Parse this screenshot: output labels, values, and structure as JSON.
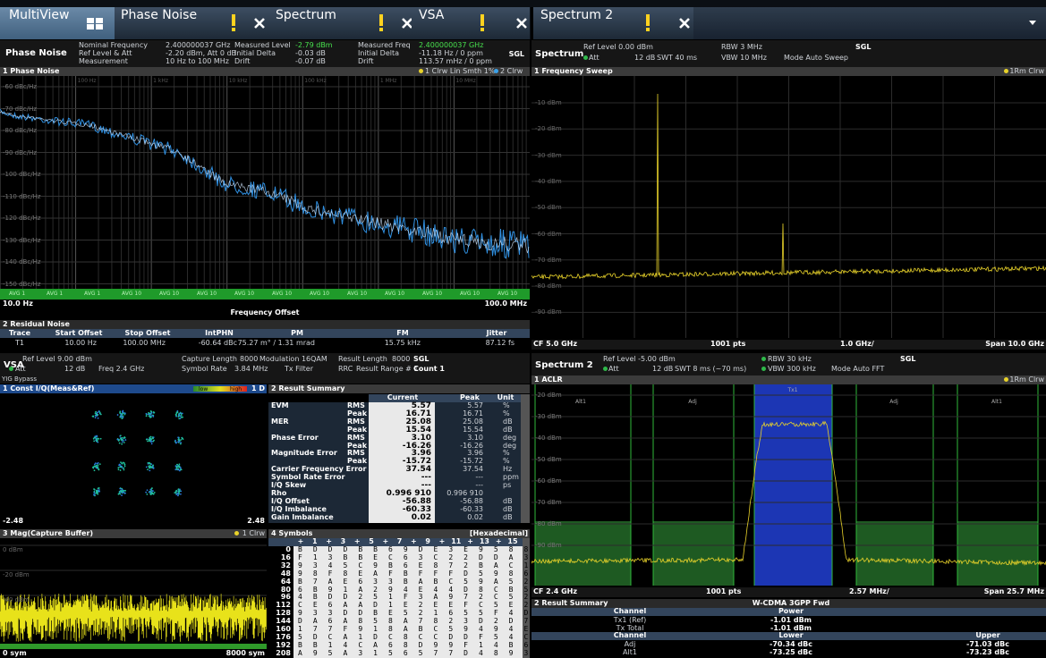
{
  "tabs": [
    {
      "label": "MultiView"
    },
    {
      "label": "Phase Noise"
    },
    {
      "label": "Spectrum"
    },
    {
      "label": "VSA"
    },
    {
      "label": "Spectrum 2"
    }
  ],
  "phase_noise": {
    "name": "Phase Noise",
    "header": [
      [
        "Nominal Frequency",
        "2.400000037 GHz"
      ],
      [
        "Ref Level & Att",
        "-2.20 dBm, Att 0 dB"
      ],
      [
        "Measurement",
        "10 Hz to 100 MHz"
      ],
      [
        "Measured Level",
        "-2.79 dBm"
      ],
      [
        "Initial Delta",
        "-0.03 dB"
      ],
      [
        "Drift",
        "-0.07 dB"
      ],
      [
        "Measured Freq",
        "2.400000037 GHz"
      ],
      [
        "Initial Delta",
        "-11.18 Hz / 0 ppm"
      ],
      [
        "Drift",
        "113.57 mHz / 0 ppm"
      ]
    ],
    "mode": "SGL",
    "plot_title": "1 Phase Noise",
    "legend": [
      "1 Clrw Lin Smth 1%",
      "2 Clrw"
    ],
    "decade_labels": [
      "100 Hz",
      "1 kHz",
      "10 kHz",
      "100 kHz",
      "1 MHz",
      "10 MHz"
    ],
    "y_labels": [
      "-60 dBc/Hz",
      "-70 dBc/Hz",
      "-80 dBc/Hz",
      "-90 dBc/Hz",
      "-100 dBc/Hz",
      "-110 dBc/Hz",
      "-120 dBc/Hz",
      "-130 dBc/Hz",
      "-140 dBc/Hz",
      "-150 dBc/Hz"
    ],
    "avg_labels": [
      "AVG 1",
      "AVG 1",
      "AVG 1",
      "AVG 10",
      "AVG 10",
      "AVG 10",
      "AVG 10",
      "AVG 10",
      "AVG 10",
      "AVG 10",
      "AVG 10",
      "AVG 10",
      "AVG 10",
      "AVG 10"
    ],
    "x_start": "10.0 Hz",
    "x_end": "100.0 MHz",
    "x_label": "Frequency Offset",
    "residual": {
      "title": "2 Residual Noise",
      "columns": [
        "Trace",
        "Start Offset",
        "Stop Offset",
        "IntPHN",
        "PM",
        "FM",
        "Jitter"
      ],
      "rows": [
        [
          "T1",
          "10.00 Hz",
          "100.00 MHz",
          "-60.64 dBc",
          "75.27 m° / 1.31 mrad",
          "15.75 kHz",
          "87.12 fs"
        ]
      ]
    }
  },
  "spectrum": {
    "name": "Spectrum",
    "header": [
      "Ref Level 0.00 dBm",
      "Att",
      "12 dB",
      "SWT 40 ms",
      "RBW 3 MHz",
      "VBW 10 MHz",
      "Mode Auto Sweep",
      "SGL"
    ],
    "plot_title": "1 Frequency Sweep",
    "trace": "1Rm Clrw",
    "y_labels": [
      "-10 dBm",
      "-20 dBm",
      "-30 dBm",
      "-40 dBm",
      "-50 dBm",
      "-60 dBm",
      "-70 dBm",
      "-80 dBm",
      "-90 dBm"
    ],
    "footer": [
      "CF 5.0 GHz",
      "1001 pts",
      "1.0 GHz/",
      "Span 10.0 GHz"
    ]
  },
  "vsa": {
    "name": "VSA",
    "header": [
      "Ref Level 9.00 dBm",
      "Att",
      "12 dB",
      "Freq 2.4 GHz",
      "Capture Length",
      "8000",
      "Symbol Rate",
      "3.84 MHz",
      "Modulation 16QAM",
      "Tx Filter",
      "RRC",
      "Result Length",
      "8000",
      "Result Range # 1",
      "SGL",
      "Count 1"
    ],
    "yig": "YIG Bypass",
    "constellation": {
      "title": "1 Const I/Q(Meas&Ref)",
      "scale": [
        "low",
        "high"
      ],
      "legend": "1 D",
      "x_min": "-2.48",
      "x_max": "2.48"
    },
    "result_summary": {
      "title": "2 Result Summary",
      "columns": [
        "Current",
        "Peak",
        "Unit"
      ],
      "rows": [
        [
          "EVM",
          "RMS",
          "5.57",
          "5.57",
          "%"
        ],
        [
          null,
          "Peak",
          "16.71",
          "16.71",
          "%"
        ],
        [
          "MER",
          "RMS",
          "25.08",
          "25.08",
          "dB"
        ],
        [
          null,
          "Peak",
          "15.54",
          "15.54",
          "dB"
        ],
        [
          "Phase Error",
          "RMS",
          "3.10",
          "3.10",
          "deg"
        ],
        [
          null,
          "Peak",
          "-16.26",
          "-16.26",
          "deg"
        ],
        [
          "Magnitude Error",
          "RMS",
          "3.96",
          "3.96",
          "%"
        ],
        [
          null,
          "Peak",
          "-15.72",
          "-15.72",
          "%"
        ],
        [
          "Carrier Frequency Error",
          null,
          "37.54",
          "37.54",
          "Hz"
        ],
        [
          "Symbol Rate Error",
          null,
          "---",
          "---",
          "ppm"
        ],
        [
          "I/Q Skew",
          null,
          "---",
          "---",
          "ps"
        ],
        [
          "Rho",
          null,
          "0.996 910",
          "0.996 910",
          null
        ],
        [
          "I/Q Offset",
          null,
          "-56.88",
          "-56.88",
          "dB"
        ],
        [
          "I/Q Imbalance",
          null,
          "-60.33",
          "-60.33",
          "dB"
        ],
        [
          "Gain Imbalance",
          null,
          "0.02",
          "0.02",
          "dB"
        ]
      ]
    },
    "magnitude": {
      "title": "3 Mag(Capture Buffer)",
      "trace": "1 Clrw",
      "y_labels": [
        "0 dBm",
        "-20 dBm",
        "-40 dBm"
      ],
      "x_start": "0 sym",
      "x_end": "8000 sym"
    },
    "symbols": {
      "title": "4 Symbols",
      "format": "[Hexadecimal]",
      "columns": [
        "+",
        "1",
        "+",
        "3",
        "+",
        "5",
        "+",
        "7",
        "+",
        "9",
        "+",
        "11",
        "+",
        "13",
        "+",
        "15"
      ],
      "rows": [
        {
          "offset": 0,
          "symbols": "B D D D B B 6 9 D E 3 E 9 5 8 8"
        },
        {
          "offset": 16,
          "symbols": "F 1 3 B B E C 6 3 C 2 2 D D A 3"
        },
        {
          "offset": 32,
          "symbols": "9 3 4 5 C 9 B 6 E 8 7 2 B A C 1"
        },
        {
          "offset": 48,
          "symbols": "9 8 F 8 E A F B F F F D 5 9 8 6"
        },
        {
          "offset": 64,
          "symbols": "B 7 A E 6 3 3 B A B C 5 9 A 5 2"
        },
        {
          "offset": 80,
          "symbols": "6 B 9 1 A 2 9 4 E 4 4 D 8 C B 5"
        },
        {
          "offset": 96,
          "symbols": "4 B D D 2 5 1 F 3 A 9 7 2 C 5 2"
        },
        {
          "offset": 112,
          "symbols": "C E 6 A A D 1 E 2 E E F C 5 E 2"
        },
        {
          "offset": 128,
          "symbols": "9 3 3 D D B E 5 2 1 6 5 5 F 4 D"
        },
        {
          "offset": 144,
          "symbols": "D A 6 A 8 5 8 A 7 8 2 3 D 2 D 7"
        },
        {
          "offset": 160,
          "symbols": "1 7 7 F 9 1 8 A B C 5 9 4 9 4 E"
        },
        {
          "offset": 176,
          "symbols": "5 D C A 1 D C 8 C C D D F 5 4 C"
        },
        {
          "offset": 192,
          "symbols": "B B 1 4 C A 6 8 D 9 9 F 1 4 B 6"
        },
        {
          "offset": 208,
          "symbols": "A 9 5 A 3 1 5 6 5 7 7 D 4 8 9 3"
        }
      ]
    }
  },
  "spectrum2": {
    "name": "Spectrum 2",
    "header": [
      "Ref Level -5.00 dBm",
      "Att",
      "12 dB",
      "SWT 8 ms (~70 ms)",
      "RBW 30 kHz",
      "VBW 300 kHz",
      "Mode Auto FFT",
      "SGL"
    ],
    "plot_title": "1 ACLR",
    "trace": "1Rm Clrw",
    "y_labels": [
      "-20 dBm",
      "-30 dBm",
      "-40 dBm",
      "-50 dBm",
      "-60 dBm",
      "-70 dBm",
      "-80 dBm",
      "-90 dBm"
    ],
    "channel_labels": [
      "Alt1",
      "Adj",
      "Tx1",
      "Adj",
      "Alt1"
    ],
    "footer": [
      "CF 2.4 GHz",
      "1001 pts",
      "2.57 MHz/",
      "Span 25.7 MHz"
    ],
    "result": {
      "title": "2 Result Summary",
      "standard": "W-CDMA 3GPP Fwd",
      "power_header": [
        "Channel",
        "Power"
      ],
      "power_rows": [
        [
          "Tx1 (Ref)",
          "-1.01 dBm"
        ],
        [
          "Tx Total",
          "-1.01 dBm"
        ]
      ],
      "acp_header": [
        "Channel",
        "Lower",
        "Upper"
      ],
      "acp_rows": [
        [
          "Adj",
          "-70.34 dBc",
          "-71.03 dBc"
        ],
        [
          "Alt1",
          "-73.25 dBc",
          "-73.23 dBc"
        ]
      ]
    }
  }
}
